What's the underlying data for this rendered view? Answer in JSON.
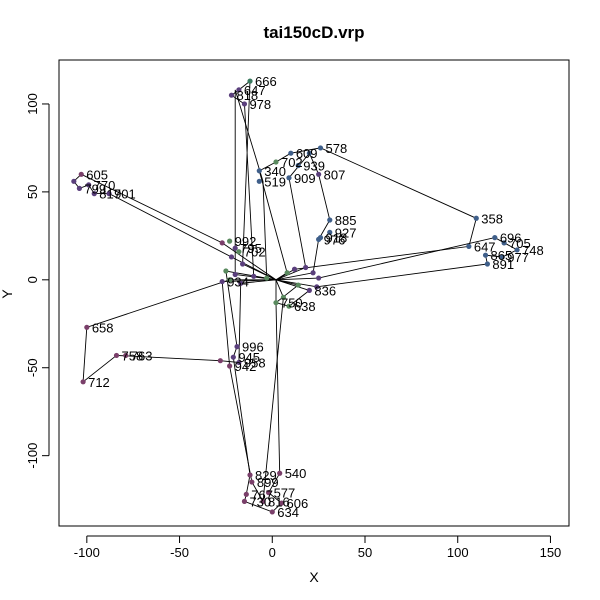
{
  "chart_data": {
    "type": "scatter",
    "title": "tai150cD.vrp",
    "xlabel": "X",
    "ylabel": "Y",
    "xlim": [
      -115,
      160
    ],
    "ylim": [
      -140,
      125
    ],
    "xticks": [
      -100,
      -50,
      0,
      50,
      100,
      150
    ],
    "yticks": [
      -100,
      -50,
      0,
      50,
      100
    ],
    "grid": false,
    "depot": [
      2,
      0
    ],
    "points": [
      {
        "x": -12,
        "y": 113,
        "label": "666",
        "color": "#3a7a5f"
      },
      {
        "x": -18,
        "y": 108,
        "label": "647",
        "color": "#5a3f7c"
      },
      {
        "x": -22,
        "y": 105,
        "label": "818",
        "color": "#5a3f7c"
      },
      {
        "x": -15,
        "y": 100,
        "label": "978",
        "color": "#5a3f7c"
      },
      {
        "x": -103,
        "y": 60,
        "label": "605",
        "color": "#7a3f6a"
      },
      {
        "x": -107,
        "y": 56,
        "label": "",
        "color": "#5a3f7c"
      },
      {
        "x": -99,
        "y": 54,
        "label": "770",
        "color": "#5a3f7c"
      },
      {
        "x": -104,
        "y": 52,
        "label": "799",
        "color": "#5a3f7c"
      },
      {
        "x": -96,
        "y": 49,
        "label": "817",
        "color": "#5a3f7c"
      },
      {
        "x": -88,
        "y": 49,
        "label": "901",
        "color": "#5a3f7c"
      },
      {
        "x": 10,
        "y": 72,
        "label": "609",
        "color": "#3f5f8a"
      },
      {
        "x": 26,
        "y": 75,
        "label": "578",
        "color": "#3f5f8a"
      },
      {
        "x": 20,
        "y": 72,
        "label": "",
        "color": "#3f5f8a"
      },
      {
        "x": 2,
        "y": 67,
        "label": "702",
        "color": "#5a8a5f"
      },
      {
        "x": 14,
        "y": 65,
        "label": "939",
        "color": "#3f5f8a"
      },
      {
        "x": -7,
        "y": 62,
        "label": "340",
        "color": "#3f5f8a"
      },
      {
        "x": -7,
        "y": 56,
        "label": "519",
        "color": "#3f5f8a"
      },
      {
        "x": 25,
        "y": 60,
        "label": "807",
        "color": "#5a3f7c"
      },
      {
        "x": 9,
        "y": 58,
        "label": "909",
        "color": "#3f5f8a"
      },
      {
        "x": 31,
        "y": 34,
        "label": "885",
        "color": "#3f5f8a"
      },
      {
        "x": 31,
        "y": 27,
        "label": "927",
        "color": "#3f5f8a"
      },
      {
        "x": 26,
        "y": 24,
        "label": "918",
        "color": "#3f5f8a"
      },
      {
        "x": 25,
        "y": 23,
        "label": "976",
        "color": "#3f5f8a"
      },
      {
        "x": 110,
        "y": 35,
        "label": "358",
        "color": "#3f5f8a"
      },
      {
        "x": 120,
        "y": 24,
        "label": "696",
        "color": "#3f5f8a"
      },
      {
        "x": 125,
        "y": 21,
        "label": "705",
        "color": "#3f5f8a"
      },
      {
        "x": 132,
        "y": 17,
        "label": "748",
        "color": "#3f5f8a"
      },
      {
        "x": 106,
        "y": 19,
        "label": "647",
        "color": "#3f5f8a"
      },
      {
        "x": 115,
        "y": 14,
        "label": "865",
        "color": "#3f5f8a"
      },
      {
        "x": 124,
        "y": 13,
        "label": "977",
        "color": "#3f5f8a"
      },
      {
        "x": 116,
        "y": 9,
        "label": "891",
        "color": "#3f5f8a"
      },
      {
        "x": -27,
        "y": 21,
        "label": "",
        "color": "#7a3f6a"
      },
      {
        "x": -23,
        "y": 22,
        "label": "992",
        "color": "#5a8a5f"
      },
      {
        "x": -20,
        "y": 18,
        "label": "795",
        "color": "#5a3f7c"
      },
      {
        "x": -18,
        "y": 16,
        "label": "702",
        "color": "#5a8a5f"
      },
      {
        "x": -22,
        "y": 13,
        "label": "",
        "color": "#5a3f7c"
      },
      {
        "x": -16,
        "y": 9,
        "label": "",
        "color": "#5a3f7c"
      },
      {
        "x": -25,
        "y": 5,
        "label": "",
        "color": "#5a8a5f"
      },
      {
        "x": -20,
        "y": 3,
        "label": "",
        "color": "#5a3f7c"
      },
      {
        "x": -23,
        "y": 0,
        "label": "",
        "color": "#5a8a5f"
      },
      {
        "x": -27,
        "y": -1,
        "label": "934",
        "color": "#5a3f7c"
      },
      {
        "x": -17,
        "y": -2,
        "label": "",
        "color": "#5a3f7c"
      },
      {
        "x": -10,
        "y": 2,
        "label": "",
        "color": "#5a3f7c"
      },
      {
        "x": -3,
        "y": 1,
        "label": "",
        "color": "#5a8a5f"
      },
      {
        "x": 8,
        "y": 4,
        "label": "",
        "color": "#5a8a5f"
      },
      {
        "x": 12,
        "y": 6,
        "label": "",
        "color": "#5a3f7c"
      },
      {
        "x": 18,
        "y": 7,
        "label": "",
        "color": "#5a3f7c"
      },
      {
        "x": 22,
        "y": 4,
        "label": "",
        "color": "#5a3f7c"
      },
      {
        "x": 25,
        "y": 1,
        "label": "",
        "color": "#5a3f7c"
      },
      {
        "x": 14,
        "y": -3,
        "label": "",
        "color": "#5a8a5f"
      },
      {
        "x": 20,
        "y": -6,
        "label": "836",
        "color": "#5a3f7c"
      },
      {
        "x": 24,
        "y": -4,
        "label": "",
        "color": "#5a3f7c"
      },
      {
        "x": 6,
        "y": -10,
        "label": "",
        "color": "#5a8a5f"
      },
      {
        "x": 2,
        "y": -13,
        "label": "750",
        "color": "#5a8a5f"
      },
      {
        "x": 9,
        "y": -15,
        "label": "638",
        "color": "#5a8a5f"
      },
      {
        "x": -100,
        "y": -27,
        "label": "658",
        "color": "#7a3f6a"
      },
      {
        "x": -102,
        "y": -58,
        "label": "712",
        "color": "#7a3f6a"
      },
      {
        "x": -84,
        "y": -43,
        "label": "758",
        "color": "#7a3f6a"
      },
      {
        "x": -79,
        "y": -43,
        "label": "763",
        "color": "#7a3f6a"
      },
      {
        "x": -28,
        "y": -46,
        "label": "",
        "color": "#7a3f6a"
      },
      {
        "x": -19,
        "y": -38,
        "label": "996",
        "color": "#5a3f7c"
      },
      {
        "x": -21,
        "y": -44,
        "label": "945",
        "color": "#5a3f7c"
      },
      {
        "x": -18,
        "y": -47,
        "label": "958",
        "color": "#5a3f7c"
      },
      {
        "x": -23,
        "y": -49,
        "label": "942",
        "color": "#7a3f6a"
      },
      {
        "x": -12,
        "y": -111,
        "label": "829",
        "color": "#7a3f6a"
      },
      {
        "x": -11,
        "y": -115,
        "label": "899",
        "color": "#7a3f6a"
      },
      {
        "x": 4,
        "y": -110,
        "label": "540",
        "color": "#7a3f6a"
      },
      {
        "x": -14,
        "y": -122,
        "label": "767",
        "color": "#7a3f6a"
      },
      {
        "x": -2,
        "y": -121,
        "label": "577",
        "color": "#7a3f6a"
      },
      {
        "x": -15,
        "y": -126,
        "label": "730",
        "color": "#7a3f6a"
      },
      {
        "x": -5,
        "y": -126,
        "label": "816",
        "color": "#7a3f6a"
      },
      {
        "x": 5,
        "y": -127,
        "label": "606",
        "color": "#7a3f6a"
      },
      {
        "x": 0,
        "y": -132,
        "label": "634",
        "color": "#7a3f6a"
      }
    ],
    "routes": [
      [
        -27,
        21,
        -103,
        60,
        -107,
        56,
        -104,
        52,
        -99,
        54,
        -96,
        49,
        -88,
        49,
        -22,
        13
      ],
      [
        -16,
        9,
        -12,
        113,
        -18,
        108,
        -22,
        105,
        -15,
        100,
        -10,
        2
      ],
      [
        -20,
        3,
        -20,
        108,
        -5,
        56,
        -3,
        1
      ],
      [
        8,
        4,
        -7,
        62,
        2,
        67,
        10,
        72,
        26,
        75,
        110,
        35,
        106,
        19,
        12,
        6
      ],
      [
        18,
        7,
        9,
        58,
        20,
        72,
        25,
        60,
        31,
        34,
        25,
        23,
        22,
        4
      ],
      [
        25,
        1,
        120,
        24,
        132,
        17,
        124,
        13,
        115,
        14,
        116,
        9,
        24,
        -4
      ],
      [
        -23,
        0,
        -100,
        -27,
        -102,
        -58,
        -84,
        -43,
        -28,
        -46,
        -18,
        -47,
        -17,
        -2
      ],
      [
        -25,
        5,
        -19,
        -38,
        -21,
        -44,
        -12,
        -111,
        -14,
        -122,
        -15,
        -126,
        0,
        -132,
        5,
        -127,
        -2,
        -121,
        4,
        -110,
        2,
        -13
      ],
      [
        -27,
        -1,
        -23,
        -49,
        -11,
        -115,
        -5,
        -126,
        6,
        -10
      ],
      [
        14,
        -3,
        2,
        -13,
        9,
        -15,
        20,
        -6
      ]
    ]
  }
}
